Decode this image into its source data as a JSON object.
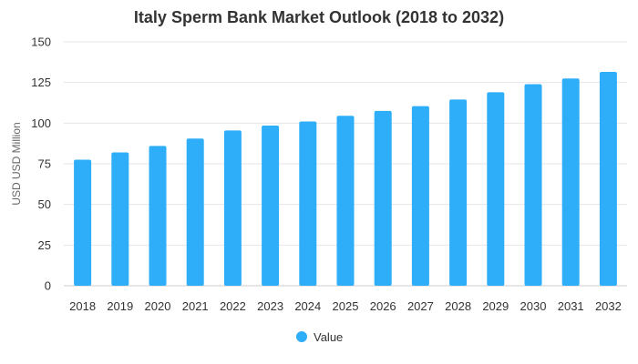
{
  "chart_data": {
    "type": "bar",
    "title": "Italy Sperm Bank Market Outlook (2018 to 2032)",
    "xlabel": "",
    "ylabel": "USD USD Million",
    "ylim": [
      0,
      150
    ],
    "yticks": [
      0,
      25,
      50,
      75,
      100,
      125,
      150
    ],
    "categories": [
      "2018",
      "2019",
      "2020",
      "2021",
      "2022",
      "2023",
      "2024",
      "2025",
      "2026",
      "2027",
      "2028",
      "2029",
      "2030",
      "2031",
      "2032"
    ],
    "series": [
      {
        "name": "Value",
        "values": [
          77.5,
          82,
          86,
          90.5,
          95.5,
          98.5,
          101,
          104.5,
          107.5,
          110.5,
          114.5,
          119,
          124,
          127.5,
          131.5
        ],
        "color": "#2eaef8"
      }
    ],
    "grid": true,
    "legend_position": "bottom-center"
  }
}
